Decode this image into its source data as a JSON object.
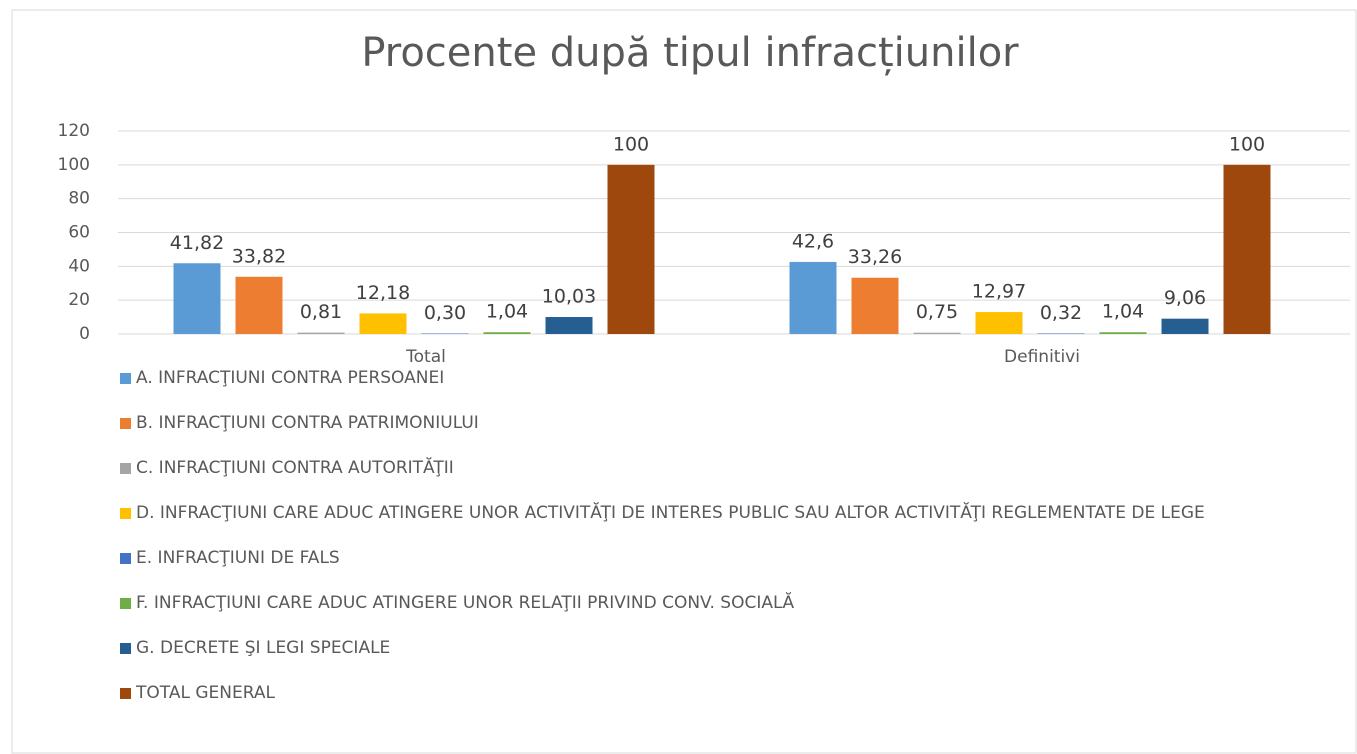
{
  "chart_data": {
    "type": "bar",
    "title": "Procente după tipul infracțiunilor",
    "categories": [
      "Total",
      "Definitivi"
    ],
    "series": [
      {
        "name": "A. INFRACŢIUNI CONTRA PERSOANEI",
        "color": "#5b9bd5",
        "values": [
          41.82,
          42.6
        ],
        "value_labels": [
          "41,82",
          "42,6"
        ]
      },
      {
        "name": "B. INFRACŢIUNI CONTRA PATRIMONIULUI",
        "color": "#ed7d31",
        "values": [
          33.82,
          33.26
        ],
        "value_labels": [
          "33,82",
          "33,26"
        ]
      },
      {
        "name": "C. INFRACŢIUNI CONTRA AUTORITĂŢII",
        "color": "#a5a5a5",
        "values": [
          0.81,
          0.75
        ],
        "value_labels": [
          "0,81",
          "0,75"
        ]
      },
      {
        "name": "D. INFRACŢIUNI CARE ADUC ATINGERE UNOR ACTIVITĂŢI DE INTERES PUBLIC SAU ALTOR ACTIVITĂŢI REGLEMENTATE DE LEGE",
        "color": "#ffc000",
        "values": [
          12.18,
          12.97
        ],
        "value_labels": [
          "12,18",
          "12,97"
        ]
      },
      {
        "name": "E. INFRACŢIUNI DE FALS",
        "color": "#4472c4",
        "values": [
          0.3,
          0.32
        ],
        "value_labels": [
          "0,30",
          "0,32"
        ]
      },
      {
        "name": "F. INFRACŢIUNI CARE ADUC ATINGERE UNOR RELAŢII PRIVIND CONV. SOCIALĂ",
        "color": "#70ad47",
        "values": [
          1.04,
          1.04
        ],
        "value_labels": [
          "1,04",
          "1,04"
        ]
      },
      {
        "name": "G. DECRETE ŞI LEGI SPECIALE",
        "color": "#255e91",
        "values": [
          10.03,
          9.06
        ],
        "value_labels": [
          "10,03",
          "9,06"
        ]
      },
      {
        "name": "TOTAL GENERAL",
        "color": "#9e480e",
        "values": [
          100,
          100
        ]
      }
    ],
    "ylim": [
      0,
      120
    ],
    "yticks": [
      0,
      20,
      40,
      60,
      80,
      100,
      120
    ],
    "grid": true,
    "legend": "bottom"
  }
}
